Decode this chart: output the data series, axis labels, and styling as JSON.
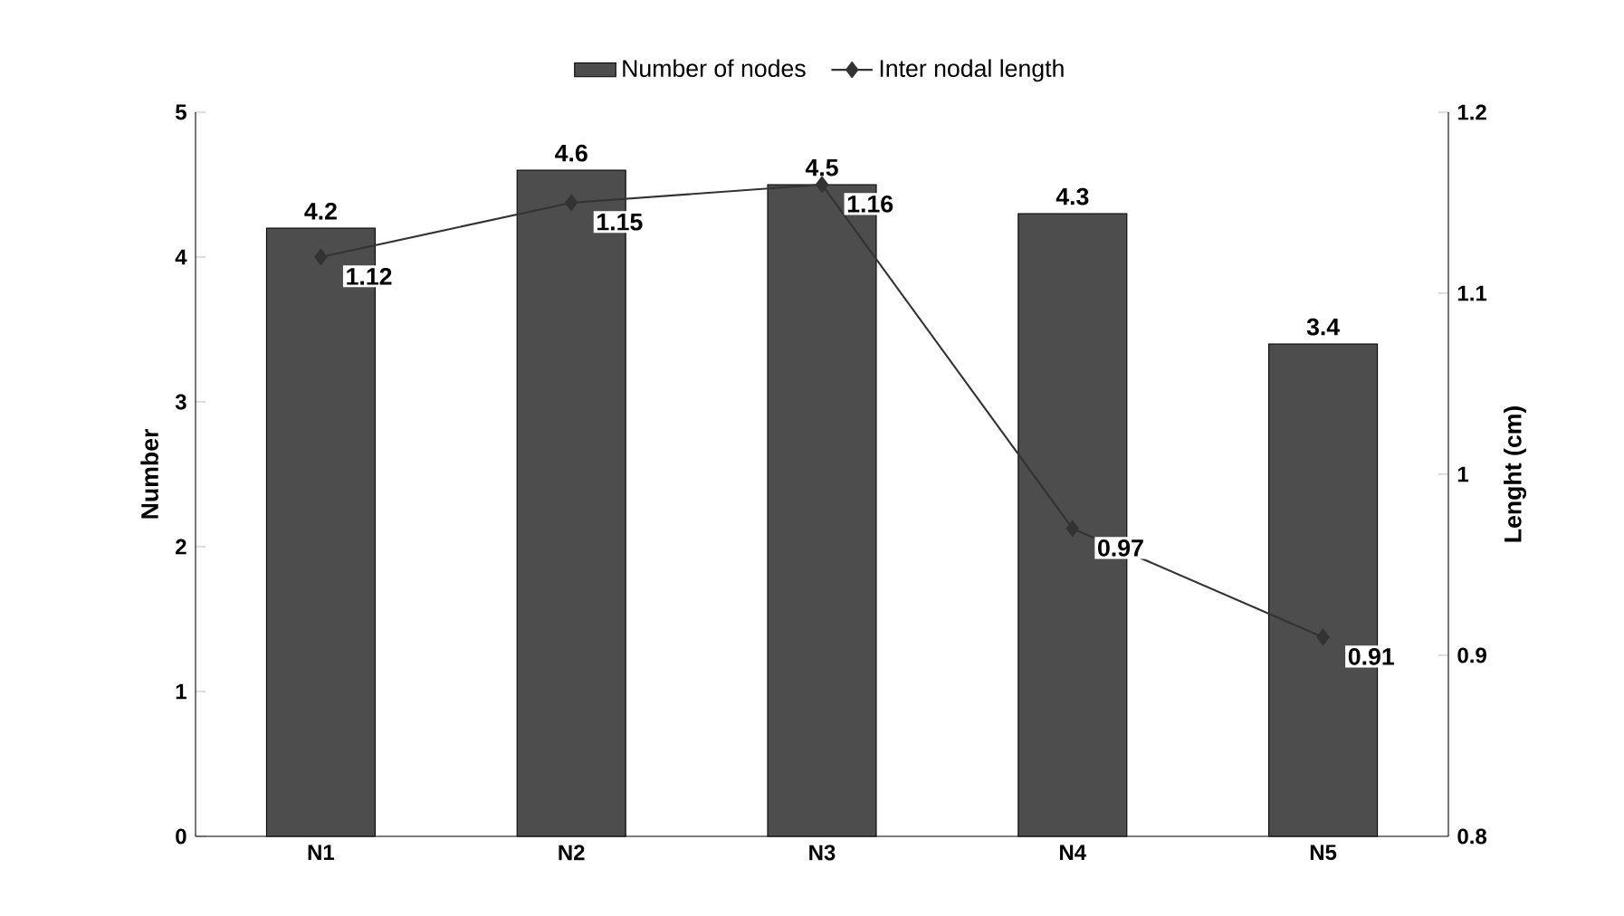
{
  "chart_data": {
    "type": "bar",
    "categories": [
      "N1",
      "N2",
      "N3",
      "N4",
      "N5"
    ],
    "ylabel": "Number",
    "y2label": "Lenght (cm)",
    "ylim": [
      0,
      5
    ],
    "yticks": [
      0,
      1,
      2,
      3,
      4,
      5
    ],
    "y2lim": [
      0.8,
      1.2
    ],
    "y2ticks": [
      0.8,
      0.9,
      1,
      1.1,
      1.2
    ],
    "series": [
      {
        "name": "Number of nodes",
        "color": "#4d4d4d",
        "values": [
          4.2,
          4.6,
          4.5,
          4.3,
          3.4
        ]
      },
      {
        "name": "Inter nodal length",
        "type": "line",
        "axis": "y2",
        "color": "#333333",
        "marker": "diamond",
        "values": [
          1.12,
          1.15,
          1.16,
          0.97,
          0.91
        ]
      }
    ],
    "data_labels": true,
    "legend": "top",
    "grid": false
  }
}
